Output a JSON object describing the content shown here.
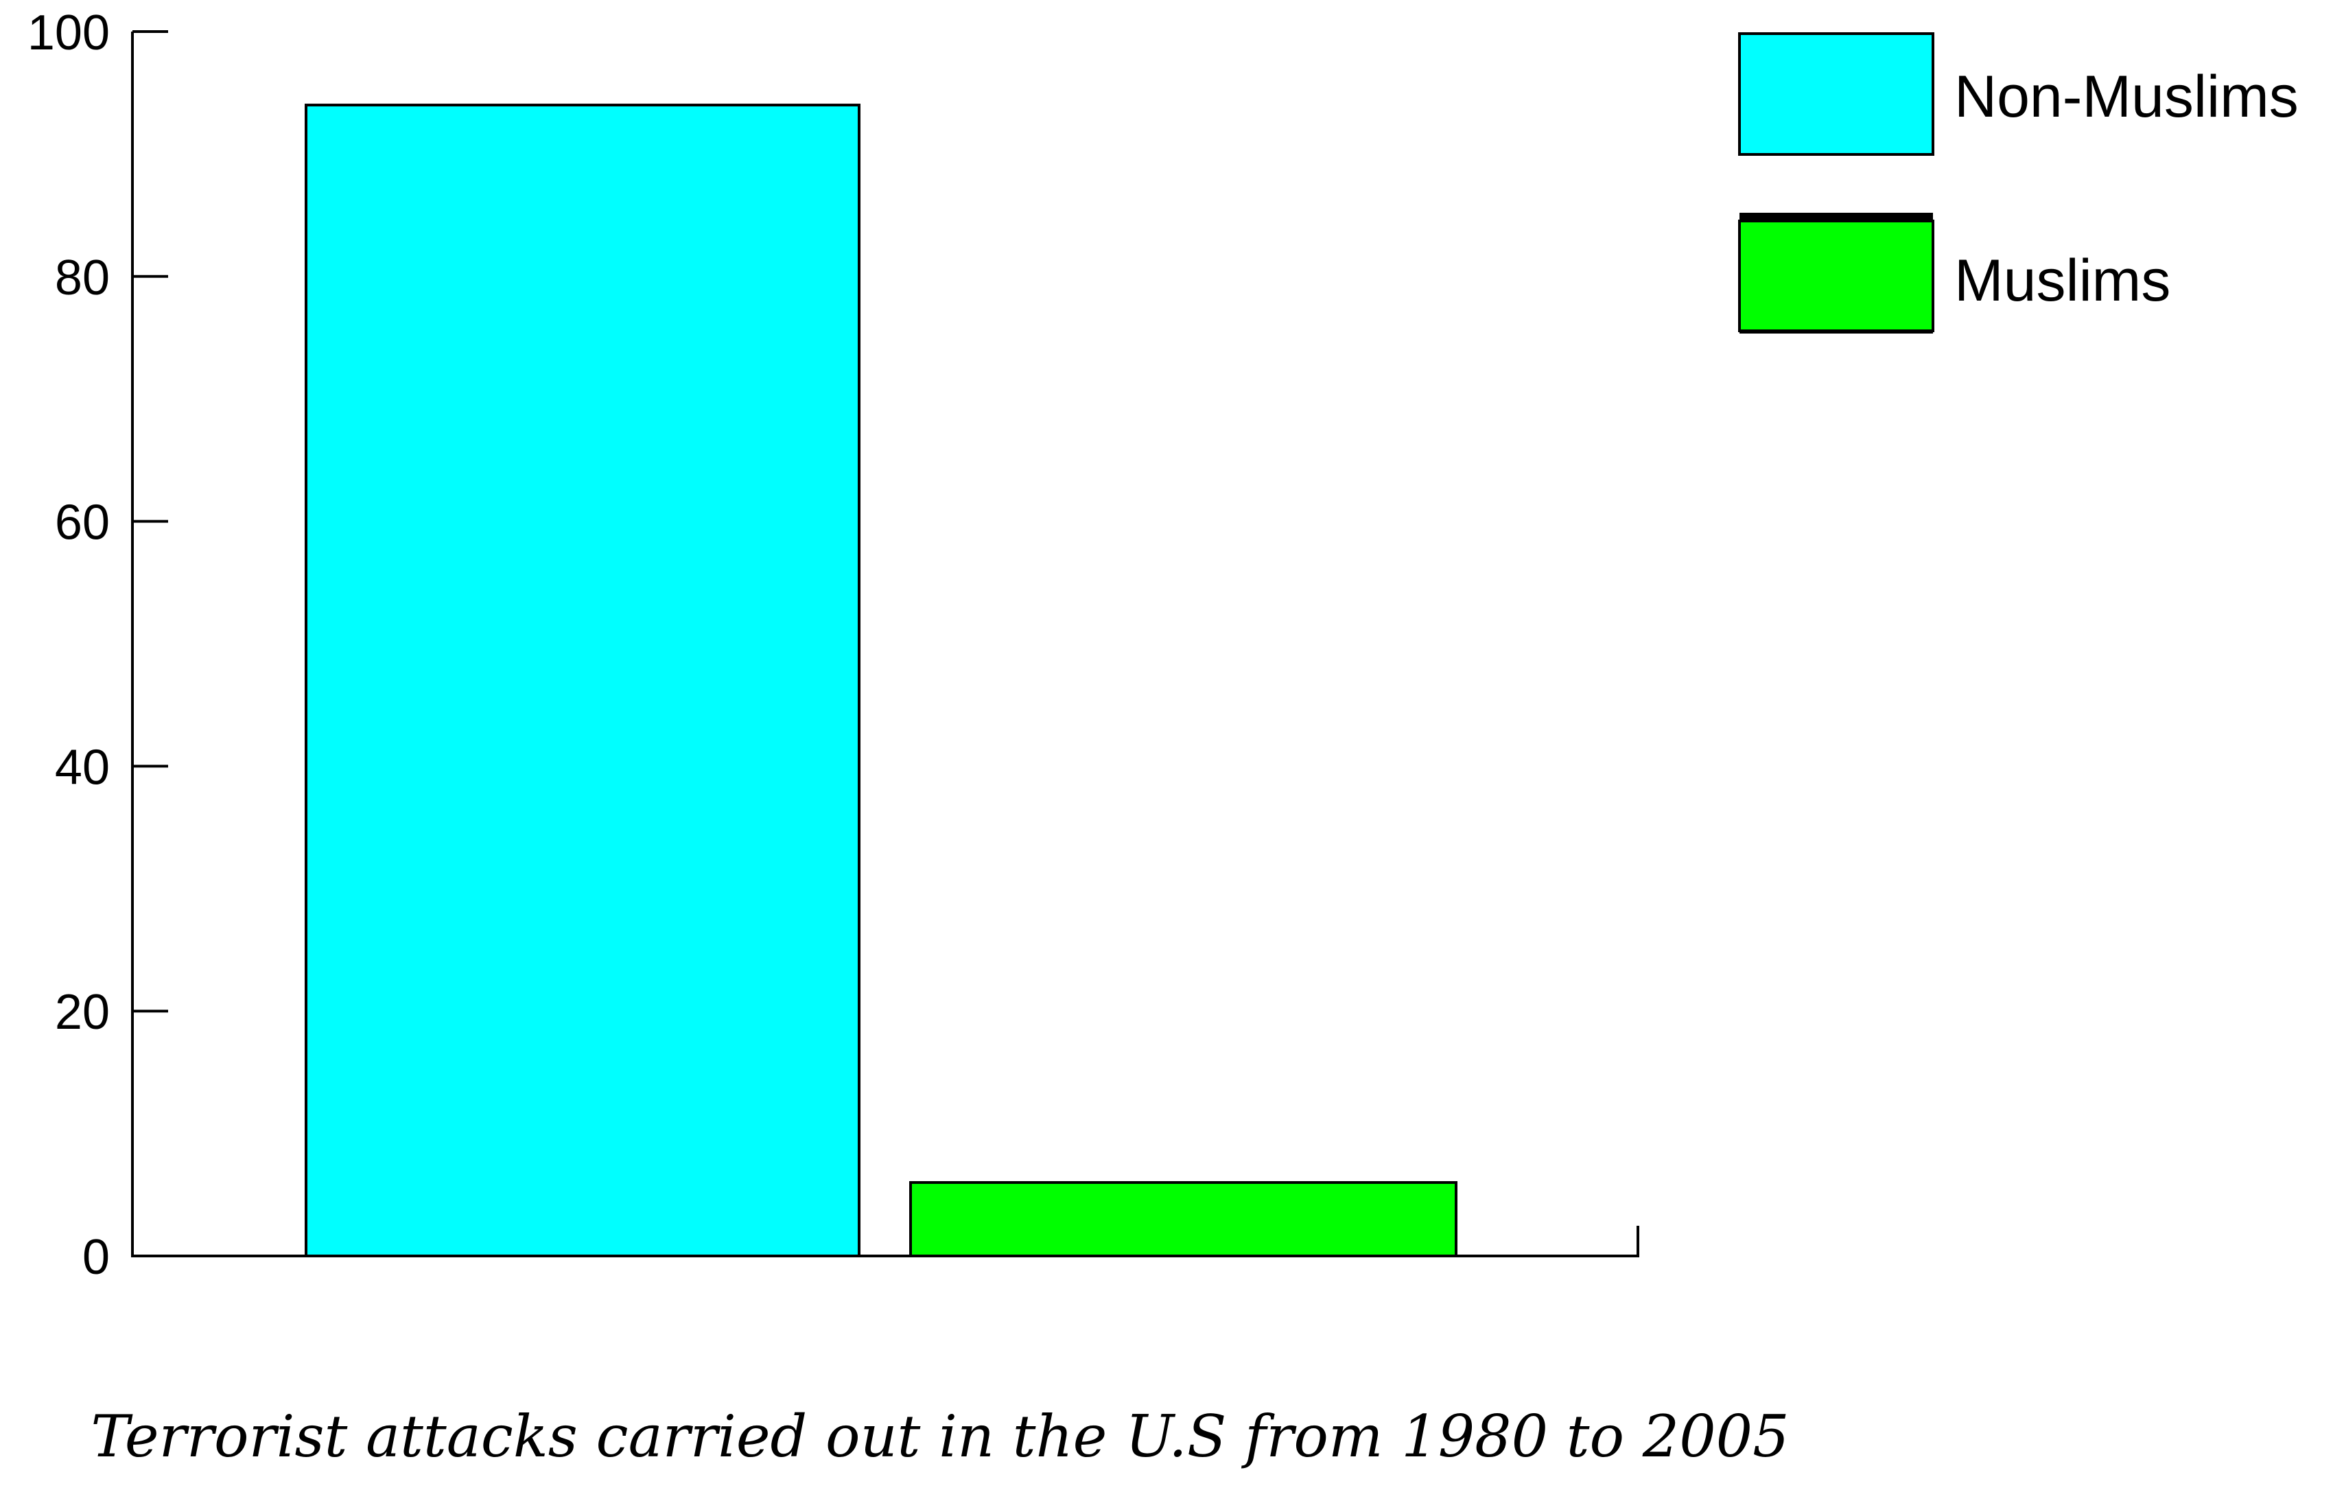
{
  "chart_data": {
    "type": "bar",
    "categories": [
      "Non-Muslims",
      "Muslims"
    ],
    "series": [
      {
        "name": "Non-Muslims",
        "values": [
          94,
          null
        ],
        "color": "#00ffff"
      },
      {
        "name": "Muslims",
        "values": [
          null,
          6
        ],
        "color": "#00ff00"
      }
    ],
    "values": [
      94,
      6
    ],
    "title": "",
    "caption": "Terrorist attacks carried out in the U.S from 1980 to 2005",
    "xlabel": "",
    "ylabel": "",
    "ylim": [
      0,
      100
    ],
    "yticks": [
      "0",
      "20",
      "40",
      "60",
      "80",
      "100"
    ],
    "grid": false,
    "legend": {
      "position": "top-right",
      "entries": [
        {
          "label": "Non-Muslims",
          "color": "#00ffff"
        },
        {
          "label": "Muslims",
          "color": "#00ff00"
        }
      ]
    }
  }
}
